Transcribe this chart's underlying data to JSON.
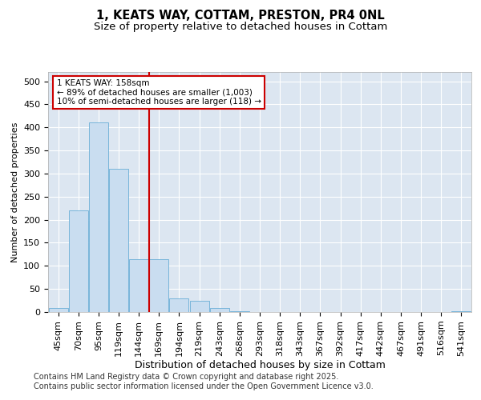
{
  "title": "1, KEATS WAY, COTTAM, PRESTON, PR4 0NL",
  "subtitle": "Size of property relative to detached houses in Cottam",
  "xlabel": "Distribution of detached houses by size in Cottam",
  "ylabel": "Number of detached properties",
  "categories": [
    "45sqm",
    "70sqm",
    "95sqm",
    "119sqm",
    "144sqm",
    "169sqm",
    "194sqm",
    "219sqm",
    "243sqm",
    "268sqm",
    "293sqm",
    "318sqm",
    "343sqm",
    "367sqm",
    "392sqm",
    "417sqm",
    "442sqm",
    "467sqm",
    "491sqm",
    "516sqm",
    "541sqm"
  ],
  "values": [
    8,
    220,
    410,
    310,
    115,
    115,
    30,
    25,
    8,
    2,
    0,
    0,
    0,
    0,
    0,
    0,
    0,
    0,
    0,
    0,
    2
  ],
  "bar_color": "#c9ddf0",
  "bar_edge_color": "#6baed6",
  "vline_color": "#cc0000",
  "annotation_box_text": "1 KEATS WAY: 158sqm\n← 89% of detached houses are smaller (1,003)\n10% of semi-detached houses are larger (118) →",
  "annotation_box_color": "#cc0000",
  "ylim": [
    0,
    520
  ],
  "yticks": [
    0,
    50,
    100,
    150,
    200,
    250,
    300,
    350,
    400,
    450,
    500
  ],
  "grid_color": "#ffffff",
  "bg_color": "#dce6f1",
  "footer": "Contains HM Land Registry data © Crown copyright and database right 2025.\nContains public sector information licensed under the Open Government Licence v3.0.",
  "title_fontsize": 10.5,
  "subtitle_fontsize": 9.5,
  "xlabel_fontsize": 9,
  "ylabel_fontsize": 8,
  "tick_fontsize": 8,
  "annotation_fontsize": 7.5,
  "footer_fontsize": 7
}
